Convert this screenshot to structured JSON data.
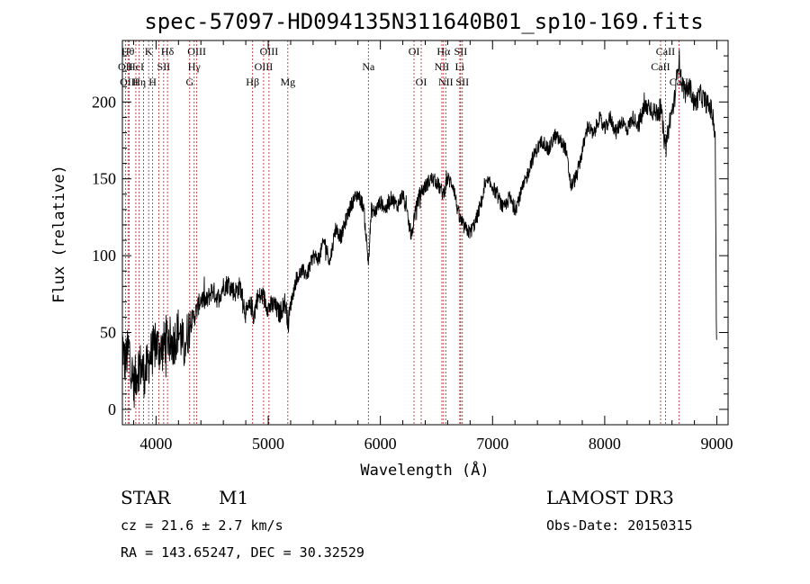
{
  "chart_data": {
    "type": "line",
    "title": "spec-57097-HD094135N311640B01_sp10-169.fits",
    "xlabel": "Wavelength (Å)",
    "ylabel": "Flux (relative)",
    "xlim": [
      3700,
      9100
    ],
    "ylim": [
      -10,
      240
    ],
    "xticks": [
      4000,
      5000,
      6000,
      7000,
      8000,
      9000
    ],
    "yticks": [
      0,
      50,
      100,
      150,
      200
    ],
    "spectrum_anchors": [
      [
        3700,
        45
      ],
      [
        3720,
        30
      ],
      [
        3760,
        40
      ],
      [
        3800,
        15
      ],
      [
        3850,
        30
      ],
      [
        3900,
        22
      ],
      [
        3950,
        35
      ],
      [
        4000,
        42
      ],
      [
        4050,
        38
      ],
      [
        4100,
        48
      ],
      [
        4150,
        42
      ],
      [
        4200,
        52
      ],
      [
        4250,
        40
      ],
      [
        4300,
        55
      ],
      [
        4350,
        62
      ],
      [
        4400,
        72
      ],
      [
        4450,
        70
      ],
      [
        4500,
        78
      ],
      [
        4550,
        72
      ],
      [
        4600,
        80
      ],
      [
        4650,
        82
      ],
      [
        4700,
        76
      ],
      [
        4750,
        80
      ],
      [
        4800,
        62
      ],
      [
        4850,
        68
      ],
      [
        4870,
        60
      ],
      [
        4900,
        72
      ],
      [
        4950,
        74
      ],
      [
        5000,
        66
      ],
      [
        5050,
        68
      ],
      [
        5100,
        62
      ],
      [
        5150,
        70
      ],
      [
        5180,
        56
      ],
      [
        5200,
        68
      ],
      [
        5250,
        85
      ],
      [
        5300,
        90
      ],
      [
        5350,
        88
      ],
      [
        5400,
        100
      ],
      [
        5450,
        98
      ],
      [
        5500,
        110
      ],
      [
        5550,
        96
      ],
      [
        5600,
        118
      ],
      [
        5650,
        112
      ],
      [
        5700,
        125
      ],
      [
        5750,
        135
      ],
      [
        5800,
        140
      ],
      [
        5850,
        132
      ],
      [
        5893,
        95
      ],
      [
        5920,
        130
      ],
      [
        5950,
        128
      ],
      [
        6000,
        135
      ],
      [
        6050,
        130
      ],
      [
        6100,
        138
      ],
      [
        6150,
        132
      ],
      [
        6200,
        140
      ],
      [
        6250,
        122
      ],
      [
        6280,
        112
      ],
      [
        6300,
        125
      ],
      [
        6350,
        140
      ],
      [
        6400,
        145
      ],
      [
        6450,
        150
      ],
      [
        6500,
        148
      ],
      [
        6560,
        140
      ],
      [
        6600,
        150
      ],
      [
        6650,
        146
      ],
      [
        6700,
        125
      ],
      [
        6750,
        118
      ],
      [
        6800,
        115
      ],
      [
        6850,
        122
      ],
      [
        6900,
        135
      ],
      [
        6950,
        148
      ],
      [
        7000,
        145
      ],
      [
        7050,
        138
      ],
      [
        7100,
        130
      ],
      [
        7150,
        138
      ],
      [
        7200,
        130
      ],
      [
        7250,
        140
      ],
      [
        7300,
        150
      ],
      [
        7350,
        162
      ],
      [
        7400,
        170
      ],
      [
        7450,
        175
      ],
      [
        7500,
        168
      ],
      [
        7550,
        178
      ],
      [
        7600,
        175
      ],
      [
        7650,
        170
      ],
      [
        7700,
        145
      ],
      [
        7750,
        152
      ],
      [
        7800,
        168
      ],
      [
        7850,
        185
      ],
      [
        7900,
        178
      ],
      [
        7950,
        190
      ],
      [
        8000,
        182
      ],
      [
        8050,
        190
      ],
      [
        8100,
        180
      ],
      [
        8150,
        188
      ],
      [
        8200,
        182
      ],
      [
        8250,
        190
      ],
      [
        8300,
        185
      ],
      [
        8350,
        195
      ],
      [
        8400,
        198
      ],
      [
        8450,
        192
      ],
      [
        8500,
        196
      ],
      [
        8542,
        168
      ],
      [
        8580,
        188
      ],
      [
        8620,
        200
      ],
      [
        8662,
        230
      ],
      [
        8680,
        215
      ],
      [
        8720,
        205
      ],
      [
        8760,
        210
      ],
      [
        8800,
        198
      ],
      [
        8850,
        205
      ],
      [
        8900,
        200
      ],
      [
        8950,
        195
      ],
      [
        8985,
        180
      ],
      [
        8995,
        60
      ],
      [
        9000,
        40
      ]
    ],
    "lines": [
      {
        "wave": 3727,
        "label": "OII",
        "row": 1
      },
      {
        "wave": 3750,
        "label": "Hθ",
        "row": 0
      },
      {
        "wave": 3760,
        "label": "OIII",
        "row": 2
      },
      {
        "wave": 3820,
        "label": "HeI",
        "row": 1
      },
      {
        "wave": 3850,
        "label": "Hη",
        "row": 2
      },
      {
        "wave": 3889,
        "label": "",
        "row": -1
      },
      {
        "wave": 3934,
        "label": "K",
        "row": 0
      },
      {
        "wave": 3969,
        "label": "H",
        "row": 2
      },
      {
        "wave": 4026,
        "label": "",
        "row": -1
      },
      {
        "wave": 4068,
        "label": "SII",
        "row": 1
      },
      {
        "wave": 4102,
        "label": "Hδ",
        "row": 0
      },
      {
        "wave": 4300,
        "label": "G",
        "row": 2
      },
      {
        "wave": 4340,
        "label": "Hγ",
        "row": 1
      },
      {
        "wave": 4363,
        "label": "OIII",
        "row": 0
      },
      {
        "wave": 4861,
        "label": "Hβ",
        "row": 2
      },
      {
        "wave": 4959,
        "label": "OIII",
        "row": 1
      },
      {
        "wave": 5007,
        "label": "OIII",
        "row": 0
      },
      {
        "wave": 5175,
        "label": "Mg",
        "row": 2
      },
      {
        "wave": 5893,
        "label": "Na",
        "row": 1
      },
      {
        "wave": 6300,
        "label": "OI",
        "row": 0
      },
      {
        "wave": 6364,
        "label": "OI",
        "row": 2
      },
      {
        "wave": 6548,
        "label": "NII",
        "row": 1
      },
      {
        "wave": 6563,
        "label": "Hα",
        "row": 0
      },
      {
        "wave": 6583,
        "label": "NII",
        "row": 2
      },
      {
        "wave": 6708,
        "label": "Li",
        "row": 1
      },
      {
        "wave": 6716,
        "label": "SII",
        "row": 0
      },
      {
        "wave": 6731,
        "label": "SII",
        "row": 2
      },
      {
        "wave": 8498,
        "label": "CaII",
        "row": 1
      },
      {
        "wave": 8542,
        "label": "CaII",
        "row": 0
      },
      {
        "wave": 8662,
        "label": "CaII",
        "row": 2
      }
    ]
  },
  "info": {
    "class_label": "STAR",
    "subclass": "M1",
    "survey": "LAMOST DR3",
    "cz": "cz = 21.6 ± 2.7 km/s",
    "obs_date": "Obs-Date: 20150315",
    "radec": "RA = 143.65247, DEC =  30.32529"
  }
}
